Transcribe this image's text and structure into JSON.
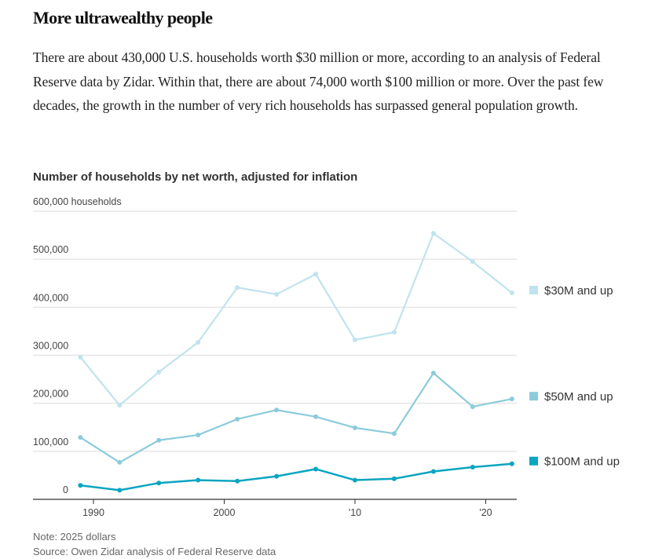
{
  "headline": "More ultrawealthy people",
  "dek": "There are about 430,000 U.S. households worth $30 million or more, according to an analysis of Federal Reserve data by Zidar. Within that, there are about 74,000 worth $100 million or more. Over the past few decades, the growth in the number of very rich households has surpassed general population growth.",
  "footer": {
    "note": "Note: 2025 dollars",
    "source": "Source: Owen Zidar analysis of Federal Reserve data"
  },
  "chart_data": {
    "type": "line",
    "title": "Number of households by net worth, adjusted for inflation",
    "xlabel": "",
    "ylabel": "households",
    "ylim": [
      0,
      600000
    ],
    "xlim": [
      1987.2,
      2022.2
    ],
    "grid": true,
    "legend_placement": "right, inline at line ends",
    "y_ticks": [
      {
        "value": 0,
        "label": "0"
      },
      {
        "value": 100000,
        "label": "100,000"
      },
      {
        "value": 200000,
        "label": "200,000"
      },
      {
        "value": 300000,
        "label": "300,000"
      },
      {
        "value": 400000,
        "label": "400,000"
      },
      {
        "value": 500000,
        "label": "500,000"
      },
      {
        "value": 600000,
        "label": "600,000 households"
      }
    ],
    "x_ticks": [
      {
        "value": 1990,
        "label": "1990"
      },
      {
        "value": 2000,
        "label": "2000"
      },
      {
        "value": 2010,
        "label": "'10"
      },
      {
        "value": 2020,
        "label": "'20"
      }
    ],
    "x": [
      1989,
      1992,
      1995,
      1998,
      2001,
      2004,
      2007,
      2010,
      2013,
      2016,
      2019,
      2022
    ],
    "series": [
      {
        "name": "$30M and up",
        "color": "#c0e3ee",
        "values": [
          296000,
          196000,
          265000,
          327000,
          441000,
          427000,
          469000,
          332000,
          348000,
          554000,
          495000,
          430000
        ]
      },
      {
        "name": "$50M and up",
        "color": "#8ccbdb",
        "values": [
          129000,
          77000,
          123000,
          134000,
          167000,
          186000,
          172000,
          149000,
          137000,
          263000,
          193000,
          209000
        ]
      },
      {
        "name": "$100M and up",
        "color": "#0aa5c0",
        "values": [
          29000,
          19000,
          34000,
          40000,
          38000,
          48000,
          63000,
          40000,
          43000,
          58000,
          67000,
          74000
        ]
      }
    ]
  }
}
